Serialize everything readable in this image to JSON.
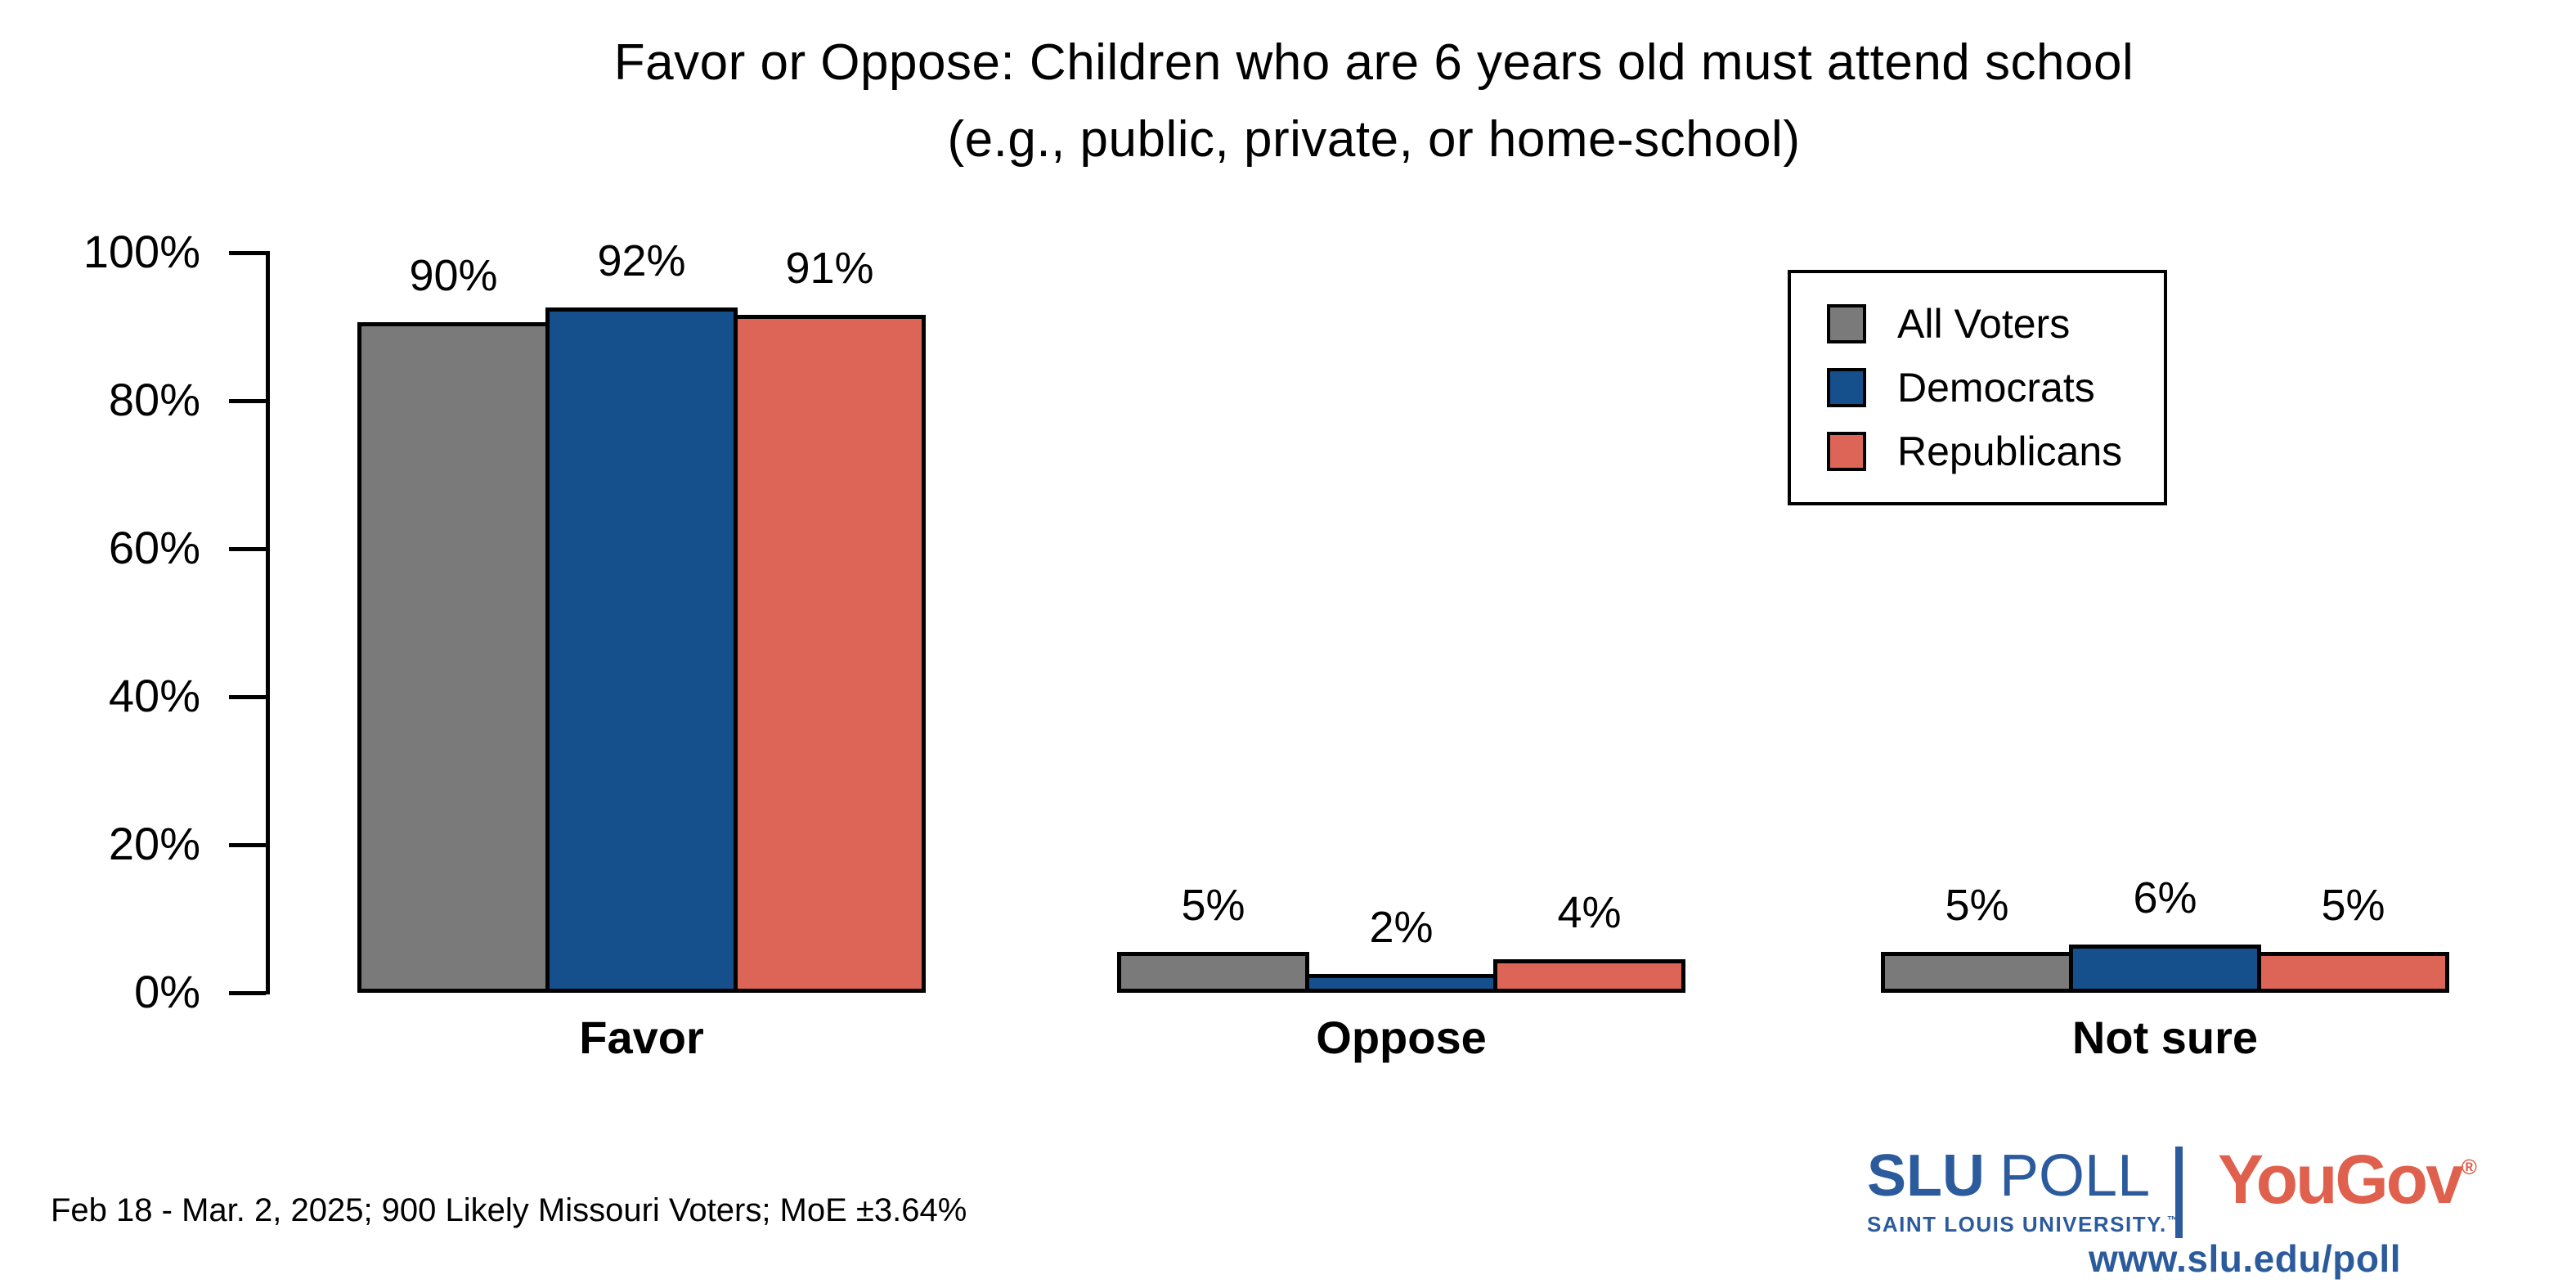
{
  "title": {
    "line1": "Favor or Oppose: Children who are 6 years old must attend school",
    "line2": "(e.g., public, private, or home-school)"
  },
  "chart_data": {
    "type": "bar",
    "categories": [
      "Favor",
      "Oppose",
      "Not sure"
    ],
    "series": [
      {
        "name": "All Voters",
        "color": "#7a7a7a",
        "values": [
          90,
          5,
          5
        ]
      },
      {
        "name": "Democrats",
        "color": "#15508c",
        "values": [
          92,
          2,
          6
        ]
      },
      {
        "name": "Republicans",
        "color": "#dd6557",
        "values": [
          91,
          4,
          5
        ]
      }
    ],
    "value_suffix": "%",
    "ylim": [
      0,
      100
    ],
    "yticks": [
      0,
      20,
      40,
      60,
      80,
      100
    ],
    "ytick_suffix": "%",
    "grid": false,
    "legend_position": "top-right",
    "bar_outline": "#000000"
  },
  "footer": {
    "source": "Feb 18 - Mar. 2, 2025; 900 Likely Missouri Voters; MoE ±3.64%"
  },
  "branding": {
    "slu_strong": "SLU",
    "slu_light": "POLL",
    "slu_subtitle": "SAINT LOUIS UNIVERSITY.",
    "trademark": "™",
    "yougov": "YouGov",
    "registered": "®",
    "url": "www.slu.edu/poll",
    "slu_blue": "#2b5b9c",
    "yougov_red": "#e0604e"
  }
}
